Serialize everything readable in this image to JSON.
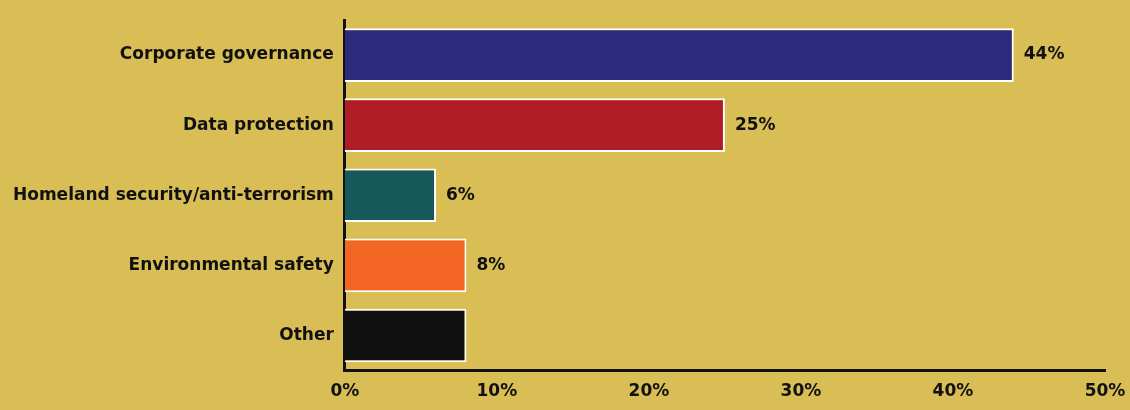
{
  "chart_data": {
    "type": "bar",
    "orientation": "horizontal",
    "categories": [
      "Corporate governance",
      "Data protection",
      "Homeland security/anti-terrorism",
      "Environmental safety",
      "Other"
    ],
    "values": [
      44,
      25,
      6,
      8,
      8
    ],
    "colors": [
      "#2b2a7c",
      "#b01c26",
      "#17585a",
      "#f26522",
      "#111111"
    ],
    "value_labels": [
      "44%",
      "25%",
      "6%",
      "8%",
      null
    ],
    "xlim": [
      0,
      50
    ],
    "xticks": [
      {
        "value": 0,
        "label": "0%"
      },
      {
        "value": 10,
        "label": "10%"
      },
      {
        "value": 20,
        "label": "20%"
      },
      {
        "value": 30,
        "label": "30%"
      },
      {
        "value": 40,
        "label": "40%"
      },
      {
        "value": 50,
        "label": "50%"
      }
    ],
    "grid": false,
    "legend": false
  }
}
